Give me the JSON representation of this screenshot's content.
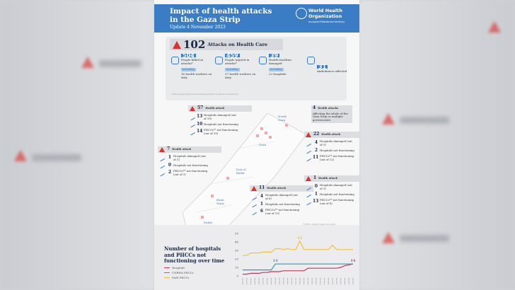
{
  "header": {
    "title_line1": "Impact of health attacks",
    "title_line2": "in the Gaza Strip",
    "update": "Update 4 November 2023",
    "org_line1": "World Health",
    "org_line2": "Organization",
    "org_sub": "occupied Palestinian territory"
  },
  "summary": {
    "total": "102",
    "total_label": "Attacks on Health Care",
    "stats": [
      {
        "value": "504",
        "label": "People killed in attacks*",
        "including": "including",
        "sub": "16 health workers on duty",
        "icon": "person-icon"
      },
      {
        "value": "459",
        "label": "People injured in attacks*",
        "including": "including",
        "sub": "37 health workers on duty",
        "icon": "injured-person-icon"
      },
      {
        "value": "39",
        "label": "Health facilities damaged",
        "including": "including",
        "sub": "22 hospitals",
        "icon": "hospital-icon"
      },
      {
        "value": "31",
        "label": "Ambulances affected",
        "icon": "ambulance-icon"
      }
    ],
    "footnote": "* Where people may have been killed and injured in attacks on health care"
  },
  "regions": [
    {
      "count": "57",
      "title": "Health attack",
      "rows": [
        [
          "13",
          "Hospitals damaged (out of 19)"
        ],
        [
          "10",
          "Hospitals not functioning"
        ],
        [
          "14",
          "PHCCs** not functioning (out of 19)"
        ]
      ]
    },
    {
      "count": "4",
      "title": "Health attacks",
      "desc": "Affecting the whole of the Gaza Strip or multiple governorates"
    },
    {
      "count": "22",
      "title": "Health attack",
      "rows": [
        [
          "4",
          "Hospitals damaged (out of 5)"
        ],
        [
          "2",
          "Hospitals not functioning"
        ],
        [
          "11",
          "PHCCs** not functioning (out of 12)"
        ]
      ]
    },
    {
      "count": "7",
      "title": "Health attack",
      "rows": [
        [
          "1",
          "Hospitals damaged (out of 3)"
        ],
        [
          "0",
          "Hospitals not functioning"
        ],
        [
          "2",
          "PHCCs** not functioning (out of 5)"
        ]
      ]
    },
    {
      "count": "11",
      "title": "Health attack",
      "rows": [
        [
          "4",
          "Hospitals damaged (out of 6)"
        ],
        [
          "1",
          "Hospitals not functioning"
        ],
        [
          "6",
          "PHCCs** not functioning (out of 13)"
        ]
      ]
    },
    {
      "count": "1",
      "title": "Health attack",
      "rows": [
        [
          "0",
          "Hospitals damaged (out of 3)"
        ],
        [
          "1",
          "Hospitals not functioning"
        ],
        [
          "13",
          "PHCCs** not functioning (out of 8)"
        ]
      ]
    }
  ],
  "map": {
    "cities": [
      "North Gaza",
      "Gaza",
      "Deir al Balah",
      "Khan Yunis",
      "Rafah"
    ],
    "note": "** PHCC: primary health care centre"
  },
  "chart_data": {
    "type": "line",
    "title": "Number of hospitals and PHCCs not functioning over time",
    "ylim": [
      0,
      50
    ],
    "yticks": [
      0,
      10,
      20,
      30,
      40,
      50
    ],
    "annotations": [
      "14",
      "41",
      "14"
    ],
    "series": [
      {
        "name": "Hospitals",
        "color": "#c0395a",
        "values": [
          2,
          2,
          3,
          3,
          3,
          4,
          4,
          5,
          5,
          5,
          6,
          6,
          6,
          6,
          6,
          6,
          9,
          9,
          9,
          9,
          9,
          9,
          9,
          9,
          10,
          12,
          13,
          14
        ]
      },
      {
        "name": "UNRWA PHCCs",
        "color": "#2a9bbf",
        "values": [
          7,
          7,
          7,
          7,
          7,
          7,
          7,
          7,
          14,
          14,
          14,
          14,
          14,
          14,
          14,
          14,
          14,
          14,
          14,
          14,
          14,
          14,
          14,
          14,
          14,
          14,
          14,
          14
        ]
      },
      {
        "name": "MoH PHCCs",
        "color": "#f0c23b",
        "values": [
          24,
          24,
          27,
          27,
          27,
          28,
          28,
          28,
          32,
          32,
          31,
          32,
          31,
          31,
          41,
          31,
          31,
          31,
          31,
          31,
          31,
          31,
          36,
          31,
          31,
          31,
          31,
          31
        ]
      }
    ]
  },
  "colors": {
    "header": "#3a7dc4",
    "alert": "#d8332f"
  }
}
